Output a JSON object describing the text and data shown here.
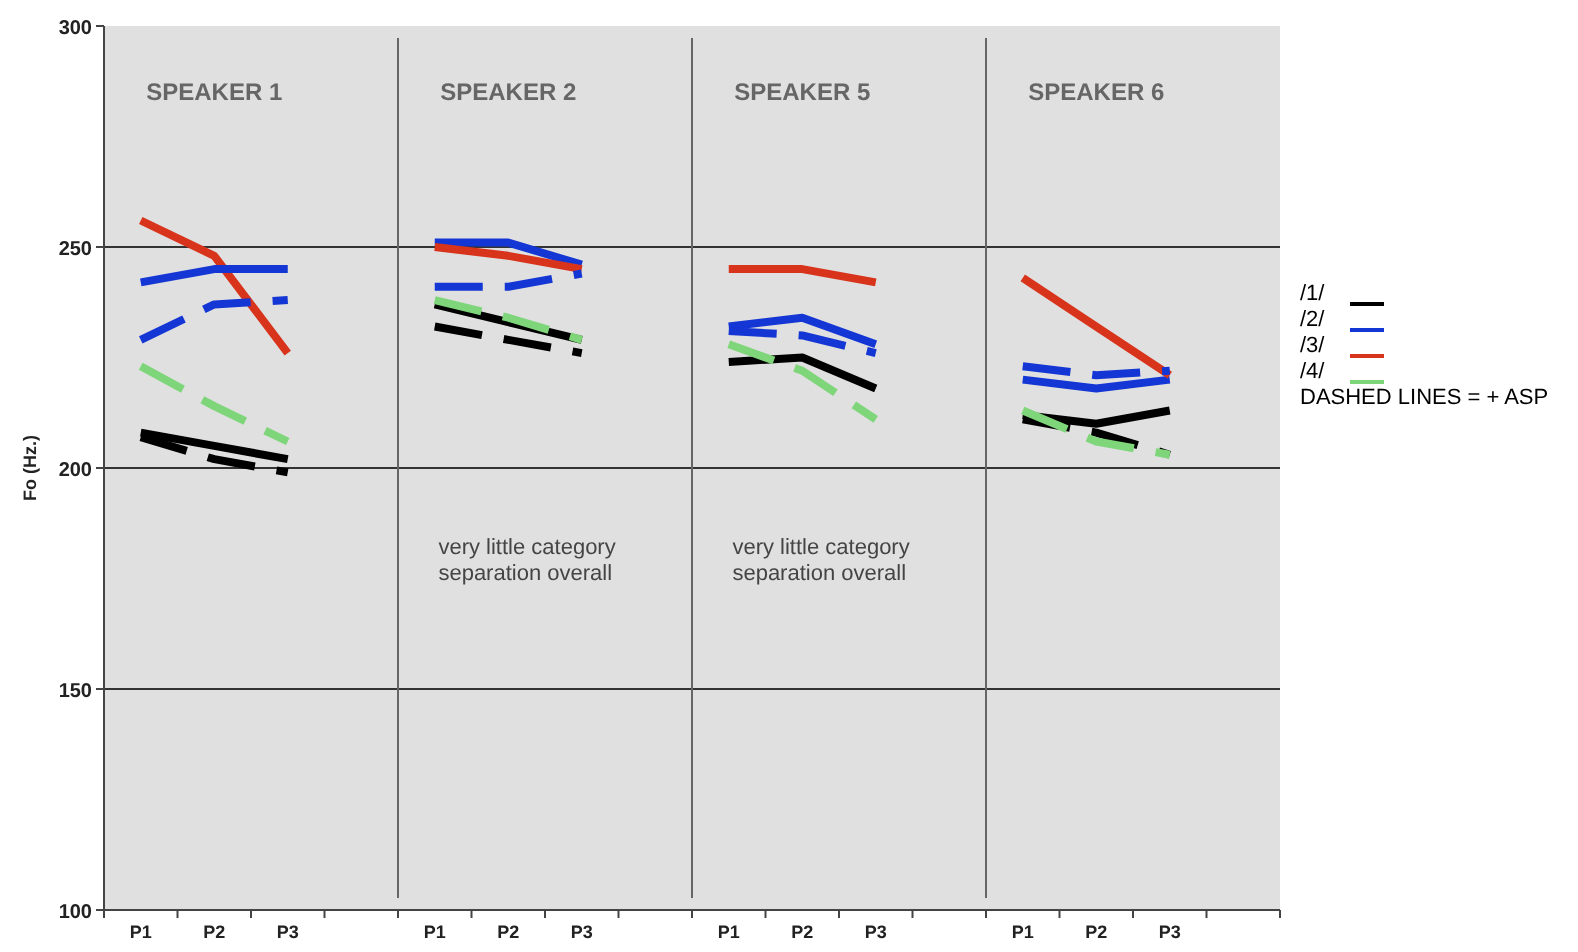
{
  "chart_data": [
    {
      "type": "line",
      "title": "SPEAKER 1",
      "ylabel": "Fo (Hz.)",
      "categories": [
        "P1",
        "P2",
        "P3"
      ],
      "ylim": [
        100,
        300
      ],
      "yticks": [
        100,
        150,
        200,
        250,
        300
      ],
      "grid": "y",
      "series": [
        {
          "color": "#d8341c",
          "values": [
            256,
            248,
            226
          ],
          "line_style": "solid"
        },
        {
          "color": "#1436d4",
          "values": [
            242,
            245,
            245
          ],
          "line_style": "solid"
        },
        {
          "color": "#1436d4",
          "values": [
            229,
            237,
            238
          ],
          "line_style": "dashed"
        },
        {
          "color": "#7fd67a",
          "values": [
            223,
            214,
            206
          ],
          "line_style": "dashed"
        },
        {
          "color": "#000000",
          "values": [
            208,
            205,
            202
          ],
          "line_style": "solid"
        },
        {
          "color": "#000000",
          "values": [
            207,
            202,
            199
          ],
          "line_style": "dashed"
        }
      ]
    },
    {
      "type": "line",
      "title": "SPEAKER 2",
      "categories": [
        "P1",
        "P2",
        "P3"
      ],
      "ylim": [
        100,
        300
      ],
      "yticks": [
        100,
        150,
        200,
        250,
        300
      ],
      "grid": "y",
      "tick_labels": "x",
      "annotations": [
        "very little category separation overall"
      ],
      "series": [
        {
          "color": "#1436d4",
          "values": [
            251,
            251,
            246
          ],
          "line_style": "solid"
        },
        {
          "color": "#d8341c",
          "values": [
            250,
            248,
            245
          ],
          "line_style": "solid"
        },
        {
          "color": "#1436d4",
          "values": [
            241,
            241,
            244
          ],
          "line_style": "dashed"
        },
        {
          "color": "#000000",
          "values": [
            237,
            233,
            229
          ],
          "line_style": "solid"
        },
        {
          "color": "#7fd67a",
          "values": [
            238,
            234,
            229
          ],
          "line_style": "dashed"
        },
        {
          "color": "#000000",
          "values": [
            232,
            229,
            226
          ],
          "line_style": "dashed"
        }
      ]
    },
    {
      "type": "line",
      "title": "SPEAKER 5",
      "categories": [
        "P1",
        "P2",
        "P3"
      ],
      "ylim": [
        100,
        300
      ],
      "yticks": [
        100,
        150,
        200,
        250,
        300
      ],
      "grid": "y",
      "tick_labels": "x",
      "annotations": [
        "very little category separation overall"
      ],
      "series": [
        {
          "color": "#d8341c",
          "values": [
            245,
            245,
            242
          ],
          "line_style": "solid"
        },
        {
          "color": "#1436d4",
          "values": [
            232,
            234,
            228
          ],
          "line_style": "solid"
        },
        {
          "color": "#1436d4",
          "values": [
            231,
            230,
            226
          ],
          "line_style": "dashed"
        },
        {
          "color": "#000000",
          "values": [
            224,
            225,
            218
          ],
          "line_style": "solid"
        },
        {
          "color": "#7fd67a",
          "values": [
            228,
            222,
            211
          ],
          "line_style": "dashed"
        }
      ]
    },
    {
      "type": "line",
      "title": "SPEAKER 6",
      "categories": [
        "P1",
        "P2",
        "P3"
      ],
      "ylim": [
        100,
        300
      ],
      "yticks": [
        100,
        150,
        200,
        250,
        300
      ],
      "grid": "y",
      "tick_labels": "x",
      "legend": "right",
      "annotations": [
        "DASHED LINES = + ASP"
      ],
      "series": [
        {
          "name": "/1/",
          "color": "#000000",
          "values": [
            212,
            210,
            213
          ],
          "line_style": "solid"
        },
        {
          "name": "/2/",
          "color": "#1436d4",
          "values": [
            220,
            218,
            220
          ],
          "line_style": "solid"
        },
        {
          "name": "/3/",
          "color": "#d8341c",
          "values": [
            243,
            232,
            221
          ],
          "line_style": "solid"
        },
        {
          "color": "#1436d4",
          "values": [
            223,
            221,
            222
          ],
          "line_style": "dashed"
        },
        {
          "color": "#000000",
          "values": [
            211,
            208,
            203
          ],
          "line_style": "dashed"
        },
        {
          "name": "/4/",
          "color": "#7fd67a",
          "values": [
            213,
            206,
            203
          ],
          "line_style": "dashed"
        }
      ]
    }
  ]
}
